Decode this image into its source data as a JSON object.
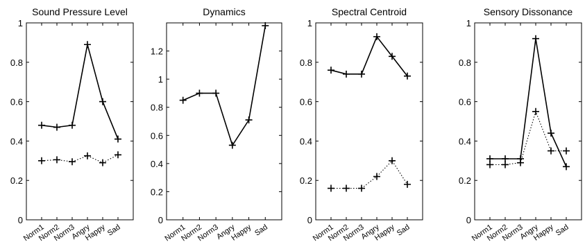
{
  "chart_data": [
    {
      "type": "line",
      "title": "Sound Pressure Level",
      "categories": [
        "Norm1",
        "Norm2",
        "Norm3",
        "Angry",
        "Happy",
        "Sad"
      ],
      "ylim": [
        0,
        1
      ],
      "yticks": [
        "0",
        "0.2",
        "0.4",
        "0.6",
        "0.8",
        "1"
      ],
      "yticks_values": [
        0,
        0.2,
        0.4,
        0.6,
        0.8,
        1
      ],
      "series": [
        {
          "style": "solid",
          "values": [
            0.48,
            0.47,
            0.48,
            0.89,
            0.6,
            0.41
          ]
        },
        {
          "style": "dotted",
          "values": [
            0.3,
            0.305,
            0.295,
            0.325,
            0.29,
            0.33
          ]
        }
      ]
    },
    {
      "type": "line",
      "title": "Dynamics",
      "categories": [
        "Norm1",
        "Norm2",
        "Norm3",
        "Angry",
        "Happy",
        "Sad"
      ],
      "ylim": [
        0,
        1.4
      ],
      "yticks": [
        "0",
        "0.2",
        "0.4",
        "0.6",
        "0.8",
        "1",
        "1.2"
      ],
      "yticks_values": [
        0,
        0.2,
        0.4,
        0.6,
        0.8,
        1,
        1.2
      ],
      "series": [
        {
          "style": "solid",
          "values": [
            0.85,
            0.9,
            0.9,
            0.53,
            0.71,
            1.38
          ]
        }
      ]
    },
    {
      "type": "line",
      "title": "Spectral Centroid",
      "categories": [
        "Norm1",
        "Norm2",
        "Norm3",
        "Angry",
        "Happy",
        "Sad"
      ],
      "ylim": [
        0,
        1
      ],
      "yticks": [
        "0",
        "0.2",
        "0.4",
        "0.6",
        "0.8",
        "1"
      ],
      "yticks_values": [
        0,
        0.2,
        0.4,
        0.6,
        0.8,
        1
      ],
      "series": [
        {
          "style": "solid",
          "values": [
            0.76,
            0.74,
            0.74,
            0.93,
            0.83,
            0.73
          ]
        },
        {
          "style": "dotted",
          "values": [
            0.16,
            0.16,
            0.16,
            0.22,
            0.3,
            0.18
          ]
        }
      ]
    },
    {
      "type": "line",
      "title": "Sensory Dissonance",
      "categories": [
        "Norm1",
        "Norm2",
        "Norm3",
        "Angry",
        "Happy",
        "Sad"
      ],
      "ylim": [
        0,
        1
      ],
      "yticks": [
        "0",
        "0.2",
        "0.4",
        "0.6",
        "0.8",
        "1"
      ],
      "yticks_values": [
        0,
        0.2,
        0.4,
        0.6,
        0.8,
        1
      ],
      "series": [
        {
          "style": "solid",
          "values": [
            0.31,
            0.31,
            0.31,
            0.92,
            0.44,
            0.27
          ]
        },
        {
          "style": "dotted",
          "values": [
            0.28,
            0.28,
            0.29,
            0.55,
            0.35,
            0.35
          ]
        }
      ]
    }
  ]
}
